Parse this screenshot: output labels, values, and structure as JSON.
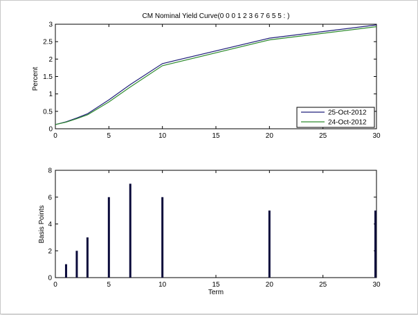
{
  "chart_data": [
    {
      "type": "line",
      "title": "CM Nominal Yield Curve(0  0  0  1  2  3  6  7  6  5  5  :  )",
      "xlabel": "",
      "ylabel": "Percent",
      "xlim": [
        0,
        30
      ],
      "ylim": [
        0,
        3
      ],
      "xticks": [
        0,
        5,
        10,
        15,
        20,
        25,
        30
      ],
      "yticks": [
        0,
        0.5,
        1,
        1.5,
        2,
        2.5,
        3
      ],
      "grid": false,
      "legend_position": "bottom-right",
      "x": [
        0,
        1,
        2,
        3,
        5,
        7,
        10,
        20,
        30
      ],
      "series": [
        {
          "name": "25-Oct-2012",
          "color": "#1f1f7a",
          "values": [
            0.12,
            0.2,
            0.31,
            0.43,
            0.83,
            1.27,
            1.87,
            2.6,
            2.98
          ]
        },
        {
          "name": "24-Oct-2012",
          "color": "#2e8b2e",
          "values": [
            0.12,
            0.19,
            0.29,
            0.4,
            0.77,
            1.2,
            1.81,
            2.55,
            2.93
          ]
        }
      ]
    },
    {
      "type": "bar",
      "title": "",
      "xlabel": "Term",
      "ylabel": "Basis Points",
      "xlim": [
        0,
        30
      ],
      "ylim": [
        0,
        8
      ],
      "xticks": [
        0,
        5,
        10,
        15,
        20,
        25,
        30
      ],
      "yticks": [
        0,
        2,
        4,
        6,
        8
      ],
      "grid": false,
      "bar_color": "#0b0b3b",
      "x": [
        1,
        2,
        3,
        5,
        7,
        10,
        20,
        30
      ],
      "values": [
        1,
        2,
        3,
        6,
        7,
        6,
        5,
        5
      ]
    }
  ]
}
